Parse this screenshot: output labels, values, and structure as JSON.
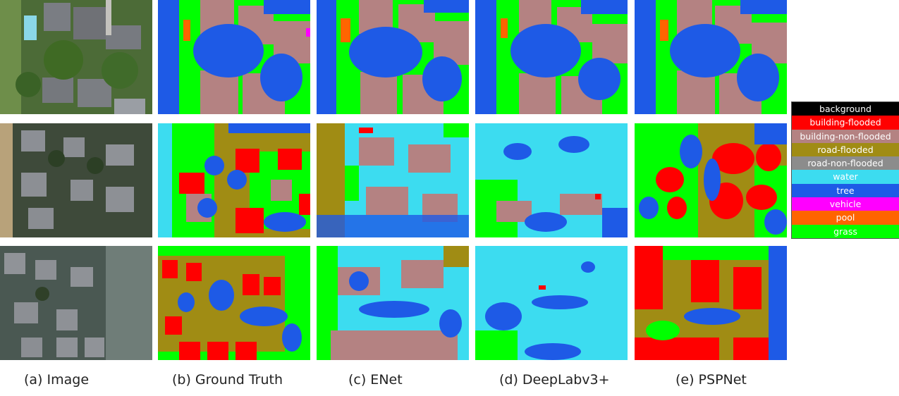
{
  "captions": {
    "image": "(a) Image",
    "ground_truth": "(b) Ground Truth",
    "enet": "(c) ENet",
    "deeplab": "(d) DeepLabv3+",
    "pspnet": "(e) PSPNet"
  },
  "legend": [
    {
      "label": "background",
      "color": "#000000"
    },
    {
      "label": "building-flooded",
      "color": "#ff0000"
    },
    {
      "label": "building-non-flooded",
      "color": "#b48282"
    },
    {
      "label": "road-flooded",
      "color": "#a08c14"
    },
    {
      "label": "road-non-flooded",
      "color": "#8c8c8c"
    },
    {
      "label": "water",
      "color": "#3cdcf0"
    },
    {
      "label": "tree",
      "color": "#1e5ae6"
    },
    {
      "label": "vehicle",
      "color": "#ff00ff"
    },
    {
      "label": "pool",
      "color": "#ff6400"
    },
    {
      "label": "grass",
      "color": "#00ff00"
    }
  ],
  "rows": [
    "row-1",
    "row-2",
    "row-3"
  ],
  "columns": [
    "image",
    "ground-truth",
    "enet",
    "deeplabv3plus",
    "pspnet"
  ]
}
